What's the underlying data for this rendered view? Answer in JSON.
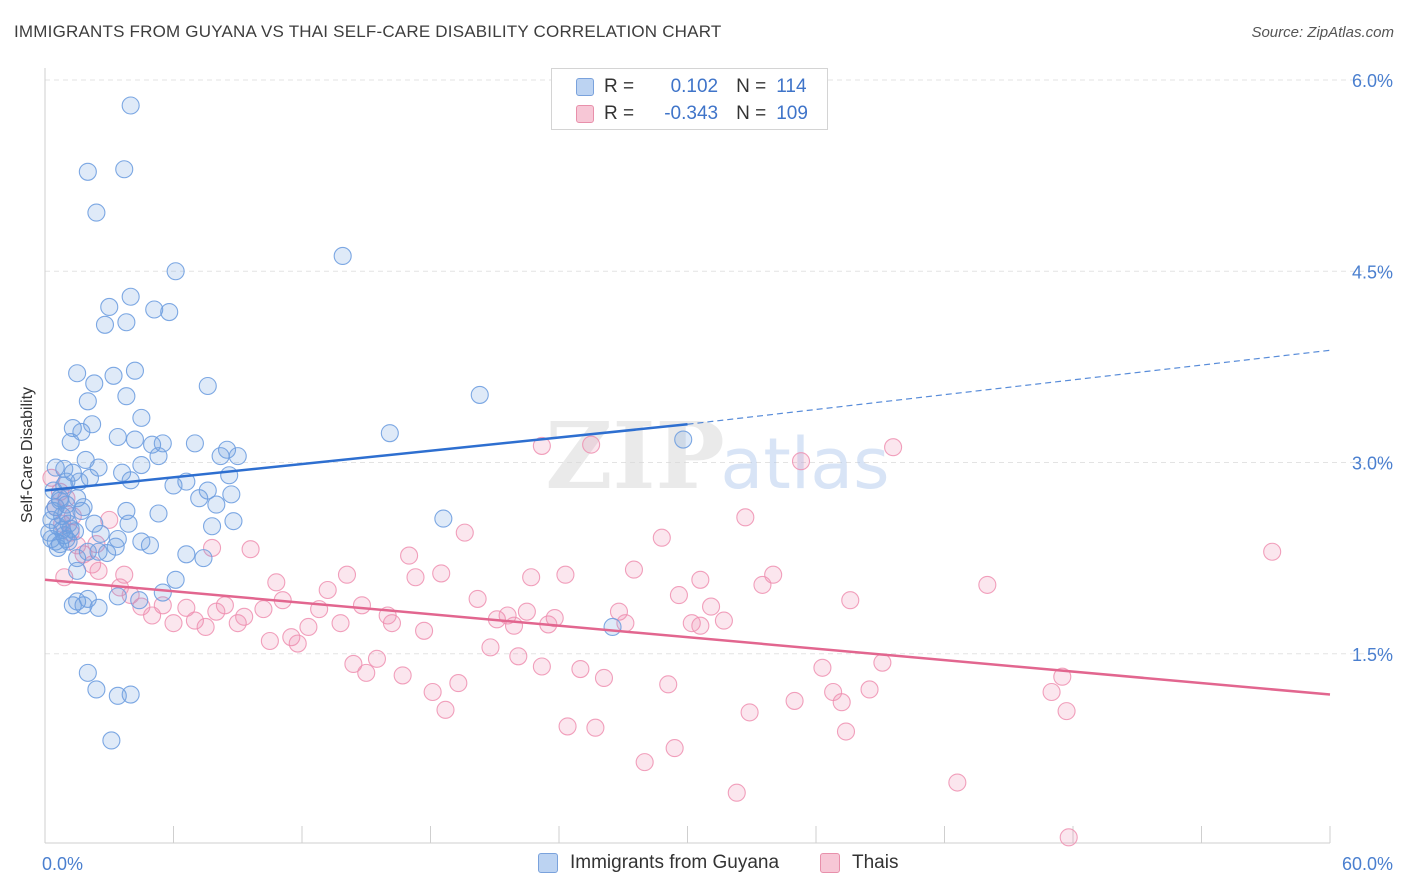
{
  "title": "IMMIGRANTS FROM GUYANA VS THAI SELF-CARE DISABILITY CORRELATION CHART",
  "source": "Source: ZipAtlas.com",
  "watermark": {
    "zip": "ZIP",
    "atlas": "atlas"
  },
  "colors": {
    "blue": "#6f9fe0",
    "blue_line": "#2e6fd0",
    "pink": "#ee8fb0",
    "pink_line": "#e2668f",
    "axis_text": "#4a7fcf"
  },
  "legend": {
    "series1": {
      "r_label": "R =",
      "r_value": "0.102",
      "n_label": "N =",
      "n_value": "114"
    },
    "series2": {
      "r_label": "R =",
      "r_value": "-0.343",
      "n_label": "N =",
      "n_value": "109"
    }
  },
  "chart_data": {
    "type": "scatter",
    "title": "IMMIGRANTS FROM GUYANA VS THAI SELF-CARE DISABILITY CORRELATION CHART",
    "xlabel": "",
    "ylabel": "Self-Care Disability",
    "xlim": [
      0,
      60
    ],
    "ylim": [
      0,
      6.3
    ],
    "x_tick_labels": [
      "0.0%",
      "60.0%"
    ],
    "y_ticks": [
      1.5,
      3.0,
      4.5,
      6.0
    ],
    "y_tick_labels": [
      "1.5%",
      "3.0%",
      "4.5%",
      "6.0%"
    ],
    "series": [
      {
        "name": "Immigrants from Guyana",
        "r": 0.102,
        "n": 114,
        "trend": {
          "x0": 0,
          "y0": 2.78,
          "x_solid_end": 30,
          "y_solid_end": 3.3,
          "x1": 60,
          "y1": 3.88
        },
        "points": [
          [
            0.2,
            2.45
          ],
          [
            0.3,
            2.55
          ],
          [
            0.4,
            2.62
          ],
          [
            0.5,
            2.38
          ],
          [
            0.6,
            2.5
          ],
          [
            0.7,
            2.72
          ],
          [
            0.8,
            2.58
          ],
          [
            0.9,
            2.43
          ],
          [
            1.0,
            2.67
          ],
          [
            1.1,
            2.52
          ],
          [
            0.3,
            2.4
          ],
          [
            0.5,
            2.65
          ],
          [
            0.6,
            2.33
          ],
          [
            0.8,
            2.47
          ],
          [
            1.0,
            2.6
          ],
          [
            1.2,
            2.48
          ],
          [
            0.4,
            2.78
          ],
          [
            0.7,
            2.36
          ],
          [
            1.3,
            2.92
          ],
          [
            1.0,
            2.85
          ],
          [
            1.2,
            3.16
          ],
          [
            1.3,
            3.27
          ],
          [
            1.5,
            2.72
          ],
          [
            1.6,
            2.85
          ],
          [
            1.7,
            3.24
          ],
          [
            1.8,
            2.65
          ],
          [
            1.5,
            3.7
          ],
          [
            1.9,
            3.02
          ],
          [
            2.0,
            3.48
          ],
          [
            2.2,
            3.3
          ],
          [
            2.3,
            3.62
          ],
          [
            2.5,
            2.96
          ],
          [
            2.3,
            2.52
          ],
          [
            2.0,
            2.3
          ],
          [
            1.5,
            2.25
          ],
          [
            1.5,
            2.15
          ],
          [
            1.3,
            1.88
          ],
          [
            1.5,
            1.91
          ],
          [
            1.8,
            1.88
          ],
          [
            2.0,
            1.93
          ],
          [
            2.5,
            1.86
          ],
          [
            1.0,
            2.4
          ],
          [
            2.5,
            2.3
          ],
          [
            2.0,
            5.28
          ],
          [
            3.7,
            5.3
          ],
          [
            2.4,
            4.96
          ],
          [
            4.0,
            5.8
          ],
          [
            3.0,
            4.22
          ],
          [
            2.8,
            4.08
          ],
          [
            3.8,
            4.1
          ],
          [
            4.0,
            4.3
          ],
          [
            5.1,
            4.2
          ],
          [
            5.8,
            4.18
          ],
          [
            6.1,
            4.5
          ],
          [
            3.2,
            3.68
          ],
          [
            4.2,
            3.72
          ],
          [
            3.8,
            3.52
          ],
          [
            4.5,
            3.35
          ],
          [
            3.4,
            3.2
          ],
          [
            4.2,
            3.18
          ],
          [
            5.0,
            3.14
          ],
          [
            5.5,
            3.15
          ],
          [
            3.6,
            2.92
          ],
          [
            4.5,
            2.98
          ],
          [
            4.0,
            2.86
          ],
          [
            5.3,
            3.05
          ],
          [
            3.8,
            2.62
          ],
          [
            3.9,
            2.52
          ],
          [
            3.3,
            2.34
          ],
          [
            3.4,
            2.4
          ],
          [
            4.5,
            2.38
          ],
          [
            4.9,
            2.35
          ],
          [
            5.3,
            2.6
          ],
          [
            6.0,
            2.82
          ],
          [
            6.6,
            2.85
          ],
          [
            6.6,
            2.28
          ],
          [
            6.1,
            2.08
          ],
          [
            5.5,
            1.98
          ],
          [
            4.4,
            1.92
          ],
          [
            3.4,
            1.95
          ],
          [
            7.2,
            2.72
          ],
          [
            7.4,
            2.25
          ],
          [
            8.5,
            3.1
          ],
          [
            7.8,
            2.5
          ],
          [
            7.6,
            2.78
          ],
          [
            8.0,
            2.67
          ],
          [
            8.6,
            2.9
          ],
          [
            8.7,
            2.75
          ],
          [
            8.8,
            2.54
          ],
          [
            7.6,
            3.6
          ],
          [
            8.2,
            3.05
          ],
          [
            7.0,
            3.15
          ],
          [
            9.0,
            3.05
          ],
          [
            13.9,
            4.62
          ],
          [
            16.1,
            3.23
          ],
          [
            18.6,
            2.56
          ],
          [
            20.3,
            3.53
          ],
          [
            26.5,
            1.71
          ],
          [
            29.8,
            3.18
          ],
          [
            2.0,
            1.35
          ],
          [
            2.4,
            1.22
          ],
          [
            3.4,
            1.17
          ],
          [
            4.0,
            1.18
          ],
          [
            3.1,
            0.82
          ],
          [
            0.5,
            2.96
          ],
          [
            0.9,
            2.95
          ],
          [
            1.4,
            2.46
          ],
          [
            0.7,
            2.7
          ],
          [
            1.1,
            2.38
          ],
          [
            0.9,
            2.82
          ],
          [
            2.6,
            2.44
          ],
          [
            2.1,
            2.88
          ],
          [
            1.7,
            2.62
          ],
          [
            2.9,
            2.29
          ]
        ]
      },
      {
        "name": "Thais",
        "r": -0.343,
        "n": 109,
        "trend": {
          "x0": 0,
          "y0": 2.08,
          "x1": 60,
          "y1": 1.18
        },
        "points": [
          [
            0.3,
            2.88
          ],
          [
            0.5,
            2.65
          ],
          [
            0.8,
            2.52
          ],
          [
            1.0,
            2.72
          ],
          [
            1.2,
            2.45
          ],
          [
            1.5,
            2.35
          ],
          [
            1.8,
            2.28
          ],
          [
            2.2,
            2.2
          ],
          [
            2.5,
            2.15
          ],
          [
            3.0,
            2.55
          ],
          [
            3.5,
            2.02
          ],
          [
            3.7,
            2.12
          ],
          [
            4.0,
            1.96
          ],
          [
            4.5,
            1.87
          ],
          [
            5.0,
            1.8
          ],
          [
            5.5,
            1.88
          ],
          [
            6.0,
            1.74
          ],
          [
            6.6,
            1.86
          ],
          [
            7.0,
            1.76
          ],
          [
            7.5,
            1.71
          ],
          [
            7.8,
            2.33
          ],
          [
            8.0,
            1.83
          ],
          [
            8.4,
            1.88
          ],
          [
            9.0,
            1.74
          ],
          [
            9.3,
            1.79
          ],
          [
            9.6,
            2.32
          ],
          [
            10.2,
            1.85
          ],
          [
            10.5,
            1.6
          ],
          [
            10.8,
            2.06
          ],
          [
            11.1,
            1.92
          ],
          [
            11.5,
            1.63
          ],
          [
            11.8,
            1.58
          ],
          [
            12.3,
            1.71
          ],
          [
            12.8,
            1.85
          ],
          [
            13.2,
            2.0
          ],
          [
            13.8,
            1.74
          ],
          [
            14.1,
            2.12
          ],
          [
            14.4,
            1.42
          ],
          [
            14.8,
            1.88
          ],
          [
            15.0,
            1.35
          ],
          [
            15.5,
            1.46
          ],
          [
            16.0,
            1.8
          ],
          [
            16.2,
            1.74
          ],
          [
            16.7,
            1.33
          ],
          [
            17.0,
            2.27
          ],
          [
            17.3,
            2.1
          ],
          [
            17.7,
            1.68
          ],
          [
            18.1,
            1.2
          ],
          [
            18.5,
            2.13
          ],
          [
            18.7,
            1.06
          ],
          [
            19.3,
            1.27
          ],
          [
            19.6,
            2.45
          ],
          [
            20.2,
            1.93
          ],
          [
            20.8,
            1.55
          ],
          [
            21.1,
            1.77
          ],
          [
            21.6,
            1.8
          ],
          [
            21.9,
            1.72
          ],
          [
            22.1,
            1.48
          ],
          [
            22.5,
            1.83
          ],
          [
            22.7,
            2.1
          ],
          [
            23.2,
            1.4
          ],
          [
            23.5,
            1.73
          ],
          [
            23.8,
            1.78
          ],
          [
            24.3,
            2.12
          ],
          [
            24.4,
            0.93
          ],
          [
            25.0,
            1.38
          ],
          [
            25.7,
            0.92
          ],
          [
            26.1,
            1.31
          ],
          [
            26.8,
            1.83
          ],
          [
            27.1,
            1.74
          ],
          [
            27.5,
            2.16
          ],
          [
            28.0,
            0.65
          ],
          [
            29.1,
            1.26
          ],
          [
            29.6,
            1.96
          ],
          [
            29.4,
            0.76
          ],
          [
            30.2,
            1.74
          ],
          [
            30.6,
            1.72
          ],
          [
            31.1,
            1.87
          ],
          [
            31.7,
            1.76
          ],
          [
            32.3,
            0.41
          ],
          [
            32.9,
            1.04
          ],
          [
            33.5,
            2.04
          ],
          [
            34.0,
            2.12
          ],
          [
            35.0,
            1.13
          ],
          [
            36.3,
            1.39
          ],
          [
            36.8,
            1.2
          ],
          [
            37.2,
            1.12
          ],
          [
            37.4,
            0.89
          ],
          [
            37.6,
            1.92
          ],
          [
            38.5,
            1.22
          ],
          [
            39.1,
            1.43
          ],
          [
            39.6,
            3.12
          ],
          [
            42.6,
            0.49
          ],
          [
            44.0,
            2.04
          ],
          [
            47.0,
            1.2
          ],
          [
            47.5,
            1.32
          ],
          [
            47.7,
            1.05
          ],
          [
            47.8,
            0.06
          ],
          [
            57.3,
            2.3
          ],
          [
            35.3,
            3.01
          ],
          [
            25.5,
            3.14
          ],
          [
            23.2,
            3.13
          ],
          [
            30.6,
            2.08
          ],
          [
            32.7,
            2.57
          ],
          [
            28.8,
            2.41
          ],
          [
            0.7,
            2.77
          ],
          [
            1.3,
            2.58
          ],
          [
            2.4,
            2.36
          ],
          [
            0.9,
            2.1
          ]
        ]
      }
    ]
  }
}
